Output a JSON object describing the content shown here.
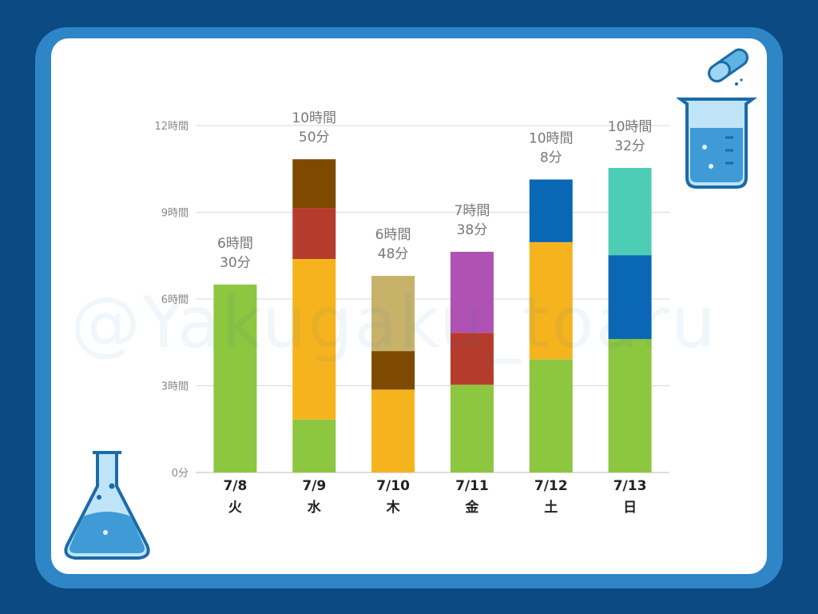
{
  "watermark": "@Yakugaku_toaru",
  "icons": [
    "capsule-icon",
    "beaker-icon",
    "flask-icon"
  ],
  "colors": {
    "background": "#0b4a82",
    "frame": "#2f86c6",
    "panel": "#ffffff",
    "grid": "#d9d9d9",
    "axis_text": "#888888",
    "total_text": "#777777",
    "category_text": "#222222"
  },
  "chart_data": {
    "type": "bar",
    "stacked": true,
    "unit": "minutes",
    "ylim": [
      0,
      720
    ],
    "yticks": [
      {
        "value": 0,
        "label": "0分"
      },
      {
        "value": 180,
        "label": "3時間"
      },
      {
        "value": 360,
        "label": "6時間"
      },
      {
        "value": 540,
        "label": "9時間"
      },
      {
        "value": 720,
        "label": "12時間"
      }
    ],
    "grid": true,
    "legend": "none",
    "categories": [
      {
        "date": "7/8",
        "weekday": "火"
      },
      {
        "date": "7/9",
        "weekday": "水"
      },
      {
        "date": "7/10",
        "weekday": "木"
      },
      {
        "date": "7/11",
        "weekday": "金"
      },
      {
        "date": "7/12",
        "weekday": "土"
      },
      {
        "date": "7/13",
        "weekday": "日"
      }
    ],
    "bars": [
      {
        "total_label": [
          "6時間",
          "30分"
        ],
        "total": 390,
        "segments": [
          {
            "color": "#8dc63f",
            "value": 390
          }
        ]
      },
      {
        "total_label": [
          "10時間",
          "50分"
        ],
        "total": 650,
        "segments": [
          {
            "color": "#8dc63f",
            "value": 110
          },
          {
            "color": "#f5b41e",
            "value": 333
          },
          {
            "color": "#b53c2c",
            "value": 106
          },
          {
            "color": "#7d4a00",
            "value": 101
          }
        ]
      },
      {
        "total_label": [
          "6時間",
          "48分"
        ],
        "total": 408,
        "segments": [
          {
            "color": "#f5b41e",
            "value": 172
          },
          {
            "color": "#7d4a00",
            "value": 80
          },
          {
            "color": "#c8b26a",
            "value": 156
          }
        ]
      },
      {
        "total_label": [
          "7時間",
          "38分"
        ],
        "total": 458,
        "segments": [
          {
            "color": "#8dc63f",
            "value": 182
          },
          {
            "color": "#b53c2c",
            "value": 108
          },
          {
            "color": "#b052b3",
            "value": 168
          }
        ]
      },
      {
        "total_label": [
          "10時間",
          "8分"
        ],
        "total": 608,
        "segments": [
          {
            "color": "#8dc63f",
            "value": 235
          },
          {
            "color": "#f5b41e",
            "value": 243
          },
          {
            "color": "#0a67b5",
            "value": 130
          }
        ]
      },
      {
        "total_label": [
          "10時間",
          "32分"
        ],
        "total": 632,
        "segments": [
          {
            "color": "#8dc63f",
            "value": 277
          },
          {
            "color": "#0a67b5",
            "value": 174
          },
          {
            "color": "#4dcdb6",
            "value": 181
          }
        ]
      }
    ]
  }
}
